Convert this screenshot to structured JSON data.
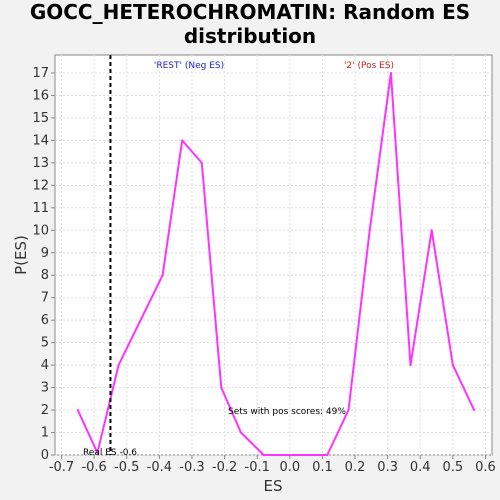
{
  "chart_data": {
    "type": "line",
    "title_line1": "GOCC_HETEROCHROMATIN: Random ES",
    "title_line2": "distribution",
    "xlabel": "ES",
    "ylabel": "P(ES)",
    "xlim": [
      -0.72,
      0.62
    ],
    "ylim": [
      0,
      17.8
    ],
    "xticks": [
      "-0.7",
      "-0.6",
      "-0.5",
      "-0.4",
      "-0.3",
      "-0.2",
      "-0.1",
      "0.0",
      "0.1",
      "0.2",
      "0.3",
      "0.4",
      "0.5",
      "0.6"
    ],
    "yticks": [
      "0",
      "1",
      "2",
      "3",
      "4",
      "5",
      "6",
      "7",
      "8",
      "9",
      "10",
      "11",
      "12",
      "13",
      "14",
      "15",
      "16",
      "17"
    ],
    "grid": true,
    "series": [
      {
        "color": "#ff33ff",
        "x": [
          -0.65,
          -0.59,
          -0.525,
          -0.39,
          -0.33,
          -0.27,
          -0.21,
          -0.15,
          -0.08,
          0.0,
          0.115,
          0.18,
          0.245,
          0.31,
          0.37,
          0.435,
          0.5,
          0.565
        ],
        "y": [
          2,
          0.1,
          4,
          8,
          14,
          13,
          3,
          1,
          0,
          0,
          0,
          2,
          10,
          17,
          4,
          10,
          4,
          2
        ]
      }
    ],
    "real_es_value": -0.55,
    "annotations": {
      "neg_label": "'REST' (Neg ES)",
      "pos_label": "'2' (Pos ES)",
      "pos_scores": "Sets with pos scores: 49%",
      "real_es": "Real ES -0.6"
    },
    "colors": {
      "neg_label": "#2222cc",
      "pos_label": "#cc2222",
      "line": "#ff33ff",
      "plot_bg": "#ffffff",
      "grid": "#dddddd"
    }
  }
}
